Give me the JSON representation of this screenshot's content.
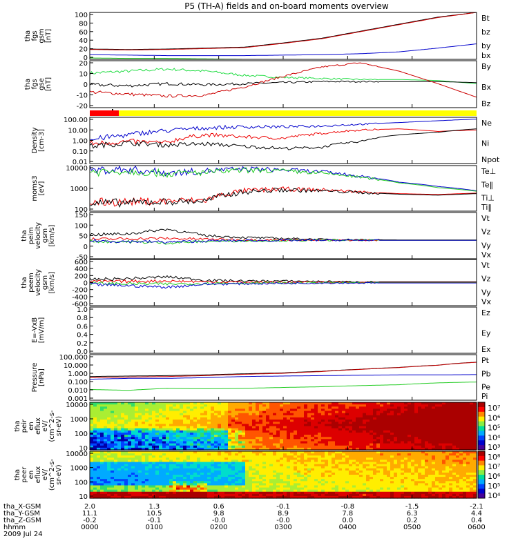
{
  "title": "P5 (TH-A) fields and on-board moments overview",
  "chart_data": [
    {
      "type": "line",
      "panel": "fgs_btotal",
      "ylabel_lines": [
        "tha",
        "fgs",
        "gsm",
        "[nT]"
      ],
      "yticks": [
        "100",
        "80",
        "60",
        "40",
        "20",
        "0"
      ],
      "ylim": [
        0,
        100
      ],
      "legend": [
        "Bt",
        "bz",
        "by",
        "bx"
      ],
      "series": [
        {
          "name": "Bt",
          "color": "#000000",
          "values": [
            22,
            21,
            22,
            24,
            26,
            35,
            45,
            60,
            75,
            90,
            100
          ]
        },
        {
          "name": "bz",
          "color": "#cc0000",
          "values": [
            21,
            20,
            21,
            23,
            25,
            34,
            44,
            59,
            74,
            89,
            100
          ]
        },
        {
          "name": "by",
          "color": "#22cc22",
          "values": [
            3,
            2,
            2,
            1,
            0,
            -1,
            -2,
            -4,
            -7,
            -9,
            -11
          ]
        },
        {
          "name": "bx",
          "color": "#0000cc",
          "values": [
            10,
            9,
            8,
            8,
            8,
            9,
            10,
            12,
            16,
            24,
            33
          ]
        }
      ]
    },
    {
      "type": "line",
      "panel": "fgs_components",
      "ylabel_lines": [
        "tha",
        "fgs",
        "gse",
        "[nT]"
      ],
      "yticks": [
        "20",
        "10",
        "0",
        "-10",
        "-20"
      ],
      "ylim": [
        -25,
        20
      ],
      "legend": [
        "By",
        "Bx",
        "Bz"
      ],
      "series": [
        {
          "name": "By",
          "color": "#22dd44",
          "values": [
            8,
            10,
            12,
            10,
            6,
            4,
            3,
            2,
            2,
            1,
            -2
          ]
        },
        {
          "name": "Bx",
          "color": "#000000",
          "values": [
            -3,
            -4,
            -2,
            -3,
            -2,
            -1,
            0,
            0,
            0,
            0,
            -1
          ]
        },
        {
          "name": "Bz",
          "color": "#cc0000",
          "values": [
            -10,
            -12,
            -14,
            -13,
            -5,
            5,
            14,
            18,
            10,
            -2,
            -15
          ]
        }
      ]
    },
    {
      "type": "bar",
      "panel": "mode_bar",
      "segments": [
        {
          "label": "slow",
          "color": "#ff0000",
          "from": 0.0,
          "to": 0.45
        },
        {
          "label": "fast",
          "color": "#ffff00",
          "from": 0.45,
          "to": 6.0
        }
      ]
    },
    {
      "type": "line",
      "panel": "density",
      "scale": "log",
      "ylabel_lines": [
        "Density",
        "[cm-3]"
      ],
      "yticks": [
        "100.00",
        "10.00",
        "1.00",
        "0.10",
        "0.01"
      ],
      "ylim": [
        0.01,
        100
      ],
      "legend": [
        "Ne",
        "Ni",
        "Npot"
      ],
      "series": [
        {
          "name": "Ne",
          "color": "#ee0000",
          "values": [
            0.5,
            0.8,
            0.6,
            3,
            2,
            1.5,
            4,
            8,
            10,
            6,
            8
          ]
        },
        {
          "name": "Ni",
          "color": "#000000",
          "values": [
            0.3,
            0.6,
            0.4,
            0.5,
            0.3,
            0.2,
            0.25,
            0.8,
            3,
            5,
            10
          ]
        },
        {
          "name": "Npot",
          "color": "#0000cc",
          "values": [
            1,
            3,
            7,
            12,
            15,
            15,
            18,
            25,
            35,
            50,
            70
          ]
        }
      ]
    },
    {
      "type": "line",
      "panel": "temperature",
      "scale": "log",
      "ylabel_lines": [
        "moms3",
        "[eV]"
      ],
      "yticks": [
        "10000",
        "1000",
        "100"
      ],
      "ylim": [
        30,
        10000
      ],
      "legend": [
        "Te⊥",
        "Te‖",
        "Ti⊥",
        "Ti‖"
      ],
      "series": [
        {
          "name": "Te⊥",
          "color": "#ee0000",
          "values": [
            90,
            100,
            110,
            120,
            400,
            500,
            450,
            350,
            280,
            250,
            300
          ]
        },
        {
          "name": "Te‖",
          "color": "#000000",
          "values": [
            80,
            90,
            100,
            110,
            350,
            450,
            400,
            320,
            260,
            230,
            280
          ]
        },
        {
          "name": "Ti⊥",
          "color": "#0000cc",
          "values": [
            5500,
            6000,
            4000,
            5000,
            6500,
            5800,
            4500,
            2500,
            1200,
            700,
            400
          ]
        },
        {
          "name": "Ti‖",
          "color": "#22cc22",
          "values": [
            4500,
            5000,
            3500,
            4200,
            5500,
            5000,
            3800,
            2200,
            1100,
            600,
            380
          ]
        }
      ]
    },
    {
      "type": "line",
      "panel": "esa_velocity",
      "ylabel_lines": [
        "tha",
        "peim",
        "velocity",
        "gsm",
        "[km/s]"
      ],
      "yticks": [
        "150",
        "100",
        "50",
        "0",
        "-50"
      ],
      "ylim": [
        -100,
        150
      ],
      "legend": [
        "Vt",
        "Vz",
        "Vy",
        "Vx"
      ],
      "series": [
        {
          "name": "Vt",
          "color": "#000000",
          "values": [
            30,
            35,
            60,
            25,
            15,
            10,
            5,
            3,
            2,
            2,
            2
          ]
        },
        {
          "name": "Vz",
          "color": "#ee0000",
          "values": [
            5,
            8,
            10,
            6,
            3,
            2,
            0,
            0,
            0,
            0,
            0
          ]
        },
        {
          "name": "Vy",
          "color": "#22cc22",
          "values": [
            -5,
            -8,
            -15,
            -6,
            -3,
            -2,
            0,
            0,
            0,
            0,
            0
          ]
        },
        {
          "name": "Vx",
          "color": "#0000cc",
          "values": [
            -3,
            -6,
            -10,
            -4,
            -2,
            -1,
            0,
            0,
            0,
            0,
            0
          ]
        }
      ]
    },
    {
      "type": "line",
      "panel": "esa_velocity_reduced",
      "ylabel_lines": [
        "tha",
        "peem",
        "velocity",
        "gsm",
        "[km/s]"
      ],
      "yticks": [
        "600",
        "400",
        "200",
        "0",
        "-200",
        "-400",
        "-600"
      ],
      "ylim": [
        -600,
        600
      ],
      "legend": [
        "Vt",
        "Vz",
        "Vy",
        "Vx"
      ],
      "series": [
        {
          "name": "Vt",
          "color": "#000000",
          "values": [
            80,
            100,
            150,
            60,
            40,
            40,
            30,
            20,
            20,
            20,
            20
          ]
        },
        {
          "name": "Vz",
          "color": "#ee0000",
          "values": [
            20,
            30,
            40,
            20,
            10,
            10,
            10,
            5,
            5,
            5,
            5
          ]
        },
        {
          "name": "Vy",
          "color": "#22cc22",
          "values": [
            -20,
            -30,
            -40,
            -20,
            -10,
            -10,
            -5,
            -5,
            -5,
            -5,
            -5
          ]
        },
        {
          "name": "Vx",
          "color": "#0000cc",
          "values": [
            -50,
            -80,
            -120,
            -40,
            -30,
            -20,
            -10,
            -10,
            -10,
            -10,
            -10
          ]
        }
      ]
    },
    {
      "type": "line",
      "panel": "efield",
      "ylabel_lines": [
        "E=-VxB",
        "[mV/m]"
      ],
      "yticks": [
        "1.0",
        "0.8",
        "0.6",
        "0.4",
        "0.2",
        "0.0"
      ],
      "ylim": [
        0,
        1
      ],
      "legend": [
        "Ez",
        "Ey",
        "Ex"
      ],
      "series": []
    },
    {
      "type": "line",
      "panel": "pressure",
      "scale": "log",
      "ylabel_lines": [
        "Pressure",
        "[nPa]"
      ],
      "yticks": [
        "100.000",
        "10.000",
        "1.000",
        "0.100",
        "0.010",
        "0.001"
      ],
      "ylim": [
        0.001,
        100
      ],
      "legend": [
        "Pt",
        "Pb",
        "Pe",
        "Pi"
      ],
      "series": [
        {
          "name": "Pt",
          "color": "#000000",
          "values": [
            0.4,
            0.45,
            0.5,
            0.6,
            0.8,
            1.0,
            1.5,
            2.5,
            4,
            7,
            15
          ]
        },
        {
          "name": "Pb",
          "color": "#cc0000",
          "values": [
            0.3,
            0.35,
            0.4,
            0.5,
            0.7,
            0.9,
            1.4,
            2.4,
            3.8,
            6.8,
            14.5
          ]
        },
        {
          "name": "Pe",
          "color": "#22cc22",
          "values": [
            0.015,
            0.012,
            0.02,
            0.018,
            0.02,
            0.025,
            0.03,
            0.04,
            0.05,
            0.08,
            0.1
          ]
        },
        {
          "name": "Pi",
          "color": "#0000cc",
          "values": [
            0.2,
            0.25,
            0.25,
            0.3,
            0.4,
            0.45,
            0.5,
            0.55,
            0.6,
            0.6,
            0.65
          ]
        }
      ]
    },
    {
      "type": "heatmap",
      "panel": "ion_spectrogram",
      "ylabel_lines": [
        "tha",
        "peir",
        "en",
        "eflux",
        "eV/",
        "(cm^2-s-",
        "sr-eV)"
      ],
      "yticks": [
        "10000",
        "1000",
        "100",
        "10"
      ],
      "ylim": [
        10,
        20000
      ],
      "colorbar": {
        "labels": [
          "10⁷",
          "10⁶",
          "10⁵",
          "10⁴",
          "10³"
        ]
      }
    },
    {
      "type": "heatmap",
      "panel": "electron_spectrogram",
      "ylabel_lines": [
        "tha",
        "peer",
        "en",
        "eflux",
        "eV/",
        "(cm^2-s-",
        "sr-eV)"
      ],
      "yticks": [
        "10000",
        "1000",
        "100",
        "10"
      ],
      "ylim": [
        10,
        20000
      ],
      "colorbar": {
        "labels": [
          "10⁸",
          "10⁷",
          "10⁶",
          "10⁵",
          "10⁴"
        ]
      }
    }
  ],
  "axis_rows": [
    {
      "label": "tha_X-GSM",
      "values": [
        "2.0",
        "1.3",
        "0.6",
        "-0.1",
        "-0.8",
        "-1.5",
        "-2.1"
      ]
    },
    {
      "label": "tha_Y-GSM",
      "values": [
        "11.1",
        "10.5",
        "9.8",
        "8.9",
        "7.8",
        "6.3",
        "4.4"
      ]
    },
    {
      "label": "tha_Z-GSM",
      "values": [
        "-0.2",
        "-0.1",
        "-0.0",
        "-0.0",
        "0.0",
        "0.2",
        "0.4"
      ]
    },
    {
      "label": "hhmm",
      "values": [
        "0000",
        "0100",
        "0200",
        "0300",
        "0400",
        "0500",
        "0600"
      ]
    }
  ],
  "date_label": "2009 Jul 24",
  "colors": {
    "red": "#ee0000",
    "green": "#22cc22",
    "blue": "#0000cc",
    "black": "#000000",
    "yellow": "#ffff00"
  }
}
